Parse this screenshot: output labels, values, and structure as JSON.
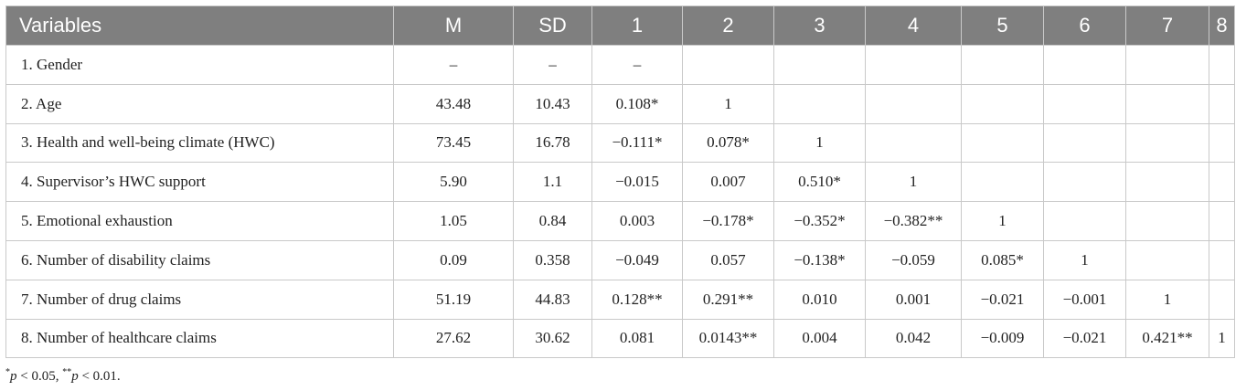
{
  "table": {
    "headers": [
      "Variables",
      "M",
      "SD",
      "1",
      "2",
      "3",
      "4",
      "5",
      "6",
      "7",
      "8"
    ],
    "rows": [
      [
        "1. Gender",
        "–",
        "–",
        "–",
        "",
        "",
        "",
        "",
        "",
        "",
        ""
      ],
      [
        "2. Age",
        "43.48",
        "10.43",
        "0.108*",
        "1",
        "",
        "",
        "",
        "",
        "",
        ""
      ],
      [
        "3. Health and well-being climate (HWC)",
        "73.45",
        "16.78",
        "−0.111*",
        "0.078*",
        "1",
        "",
        "",
        "",
        "",
        ""
      ],
      [
        "4. Supervisor’s HWC support",
        "5.90",
        "1.1",
        "−0.015",
        "0.007",
        "0.510*",
        "1",
        "",
        "",
        "",
        ""
      ],
      [
        "5. Emotional exhaustion",
        "1.05",
        "0.84",
        "0.003",
        "−0.178*",
        "−0.352*",
        "−0.382**",
        "1",
        "",
        "",
        ""
      ],
      [
        "6. Number of disability claims",
        "0.09",
        "0.358",
        "−0.049",
        "0.057",
        "−0.138*",
        "−0.059",
        "0.085*",
        "1",
        "",
        ""
      ],
      [
        "7. Number of drug claims",
        "51.19",
        "44.83",
        "0.128**",
        "0.291**",
        "0.010",
        "0.001",
        "−0.021",
        "−0.001",
        "1",
        ""
      ],
      [
        "8. Number of healthcare claims",
        "27.62",
        "30.62",
        "0.081",
        "0.0143**",
        "0.004",
        "0.042",
        "−0.009",
        "−0.021",
        "0.421**",
        "1"
      ]
    ]
  },
  "footnote": {
    "star1": "*",
    "p1": "p",
    "cond1": " < 0.05, ",
    "star2": "**",
    "p2": "p",
    "cond2": " < 0.01."
  }
}
